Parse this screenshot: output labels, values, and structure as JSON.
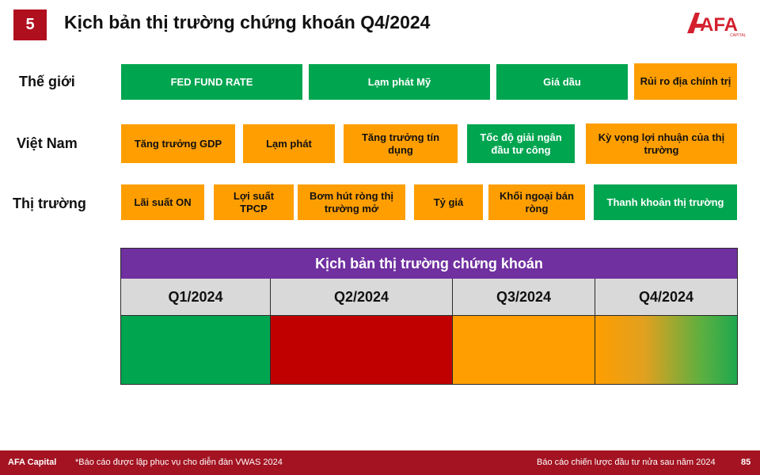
{
  "header": {
    "slide_number": "5",
    "title": "Kịch bản thị trường chứng khoán Q4/2024",
    "logo_text": "AFA",
    "logo_subtext": "CAPITAL"
  },
  "rows": {
    "world": {
      "label": "Thế giới",
      "items": [
        {
          "label": "FED FUND RATE",
          "status": "green"
        },
        {
          "label": "Lạm phát Mỹ",
          "status": "green"
        },
        {
          "label": "Giá dầu",
          "status": "green"
        },
        {
          "label": "Rủi ro địa chính trị",
          "status": "orange"
        }
      ]
    },
    "vietnam": {
      "label": "Việt Nam",
      "items": [
        {
          "label": "Tăng trưởng GDP",
          "status": "orange"
        },
        {
          "label": "Lạm phát",
          "status": "orange"
        },
        {
          "label": "Tăng trưởng tín dụng",
          "status": "orange"
        },
        {
          "label": "Tốc độ giải ngân đầu tư công",
          "status": "green"
        },
        {
          "label": "Kỳ vọng lợi nhuận của thị trường",
          "status": "orange"
        }
      ]
    },
    "market": {
      "label": "Thị trường",
      "items": [
        {
          "label": "Lãi suất ON",
          "status": "orange"
        },
        {
          "label": "Lợi suất TPCP",
          "status": "orange"
        },
        {
          "label": "Bơm hút ròng thị trường mở",
          "status": "orange"
        },
        {
          "label": "Tỷ giá",
          "status": "orange"
        },
        {
          "label": "Khối ngoại bán ròng",
          "status": "orange"
        },
        {
          "label": "Thanh khoản thị trường",
          "status": "green"
        }
      ]
    }
  },
  "scenario_table": {
    "title": "Kịch bản thị trường chứng khoán",
    "quarters": [
      {
        "label": "Q1/2024",
        "color": "#00a550"
      },
      {
        "label": "Q2/2024",
        "color": "#c00000"
      },
      {
        "label": "Q3/2024",
        "color": "#ff9e00"
      },
      {
        "label": "Q4/2024",
        "color": "orange-to-green"
      }
    ]
  },
  "colors": {
    "green": "#00a550",
    "orange": "#ff9e00",
    "red": "#c00000",
    "purple": "#7030a0",
    "brand_red": "#b00f1e"
  },
  "footer": {
    "company": "AFA Capital",
    "note": "*Báo cáo được lập phục vụ cho diễn đàn VWAS 2024",
    "report_title": "Báo cáo chiến lược đầu tư nửa sau năm 2024",
    "page": "85"
  }
}
